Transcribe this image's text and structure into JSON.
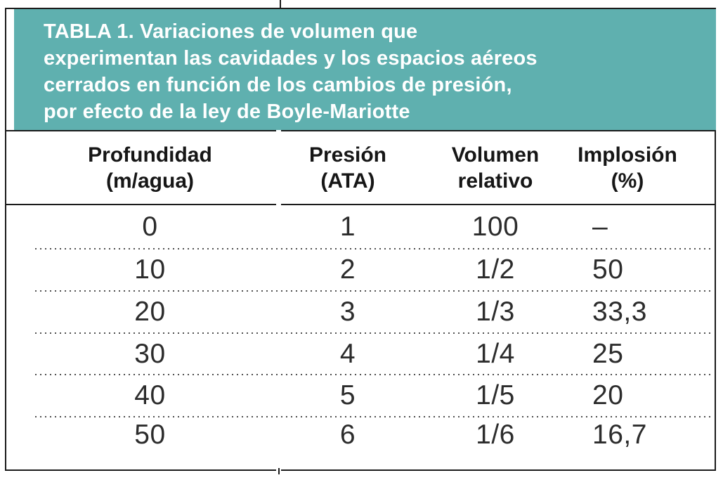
{
  "accent_color": "#5fb0af",
  "line_color": "#1b1b1b",
  "header": {
    "title_lines": [
      "TABLA 1. Variaciones de volumen que",
      "experimentan las cavidades y los espacios aéreos",
      "cerrados en función de los cambios de presión,",
      "por efecto de la ley de Boyle-Mariotte"
    ]
  },
  "columns": [
    {
      "id": "profundidad",
      "lines": [
        "Profundidad",
        "(m/agua)"
      ]
    },
    {
      "id": "presion",
      "lines": [
        "Presión",
        "(ATA)"
      ]
    },
    {
      "id": "volumen",
      "lines": [
        "Volumen",
        "relativo"
      ]
    },
    {
      "id": "implosion",
      "lines": [
        "Implosión",
        "(%)"
      ]
    }
  ],
  "rows": [
    [
      "0",
      "1",
      "100",
      "–"
    ],
    [
      "10",
      "2",
      "1/2",
      "50"
    ],
    [
      "20",
      "3",
      "1/3",
      "33,3"
    ],
    [
      "30",
      "4",
      "1/4",
      "25"
    ],
    [
      "40",
      "5",
      "1/5",
      "20"
    ],
    [
      "50",
      "6",
      "1/6",
      "16,7"
    ]
  ],
  "chart_data": {
    "type": "table",
    "title": "TABLA 1. Variaciones de volumen que experimentan las cavidades y los espacios aéreos cerrados en función de los cambios de presión, por efecto de la ley de Boyle-Mariotte",
    "columns": [
      "Profundidad (m/agua)",
      "Presión (ATA)",
      "Volumen relativo",
      "Implosión (%)"
    ],
    "rows": [
      [
        0,
        1,
        "100",
        "–"
      ],
      [
        10,
        2,
        "1/2",
        "50"
      ],
      [
        20,
        3,
        "1/3",
        "33,3"
      ],
      [
        30,
        4,
        "1/4",
        "25"
      ],
      [
        40,
        5,
        "1/5",
        "20"
      ],
      [
        50,
        6,
        "1/6",
        "16,7"
      ]
    ]
  }
}
